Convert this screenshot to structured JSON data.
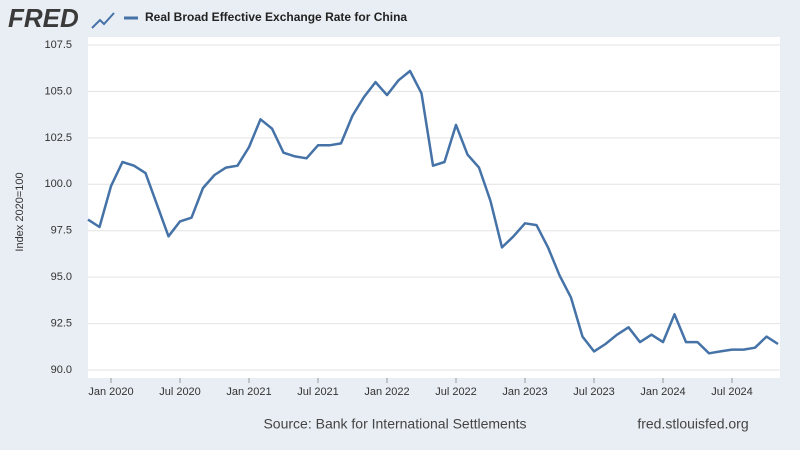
{
  "logo": "FRED",
  "chart_data": {
    "type": "line",
    "y_label": "Index 2020=100",
    "source": "Source: Bank for International Settlements",
    "site": "fred.stlouisfed.org",
    "x": [
      "2019-11",
      "2019-12",
      "2020-01",
      "2020-02",
      "2020-03",
      "2020-04",
      "2020-05",
      "2020-06",
      "2020-07",
      "2020-08",
      "2020-09",
      "2020-10",
      "2020-11",
      "2020-12",
      "2021-01",
      "2021-02",
      "2021-03",
      "2021-04",
      "2021-05",
      "2021-06",
      "2021-07",
      "2021-08",
      "2021-09",
      "2021-10",
      "2021-11",
      "2021-12",
      "2022-01",
      "2022-02",
      "2022-03",
      "2022-04",
      "2022-05",
      "2022-06",
      "2022-07",
      "2022-08",
      "2022-09",
      "2022-10",
      "2022-11",
      "2022-12",
      "2023-01",
      "2023-02",
      "2023-03",
      "2023-04",
      "2023-05",
      "2023-06",
      "2023-07",
      "2023-08",
      "2023-09",
      "2023-10",
      "2023-11",
      "2023-12",
      "2024-01",
      "2024-02",
      "2024-03",
      "2024-04",
      "2024-05",
      "2024-06",
      "2024-07",
      "2024-08",
      "2024-09",
      "2024-10",
      "2024-11"
    ],
    "series": [
      {
        "name": "Real Broad Effective Exchange Rate for China",
        "color": "#4572a7",
        "values": [
          98.1,
          97.7,
          99.9,
          101.2,
          101.0,
          100.6,
          98.9,
          97.2,
          98.0,
          98.2,
          99.8,
          100.5,
          100.9,
          101.0,
          102.0,
          103.5,
          103.0,
          101.7,
          101.5,
          101.4,
          102.1,
          102.1,
          102.2,
          103.7,
          104.7,
          105.5,
          104.8,
          105.6,
          106.1,
          104.9,
          101.0,
          101.2,
          103.2,
          101.6,
          100.9,
          99.1,
          96.6,
          97.2,
          97.9,
          97.8,
          96.6,
          95.1,
          93.9,
          91.8,
          91.0,
          91.4,
          91.9,
          92.3,
          91.5,
          91.9,
          91.5,
          93.0,
          91.5,
          91.5,
          90.9,
          91.0,
          91.1,
          91.1,
          91.2,
          91.8,
          91.4
        ]
      }
    ],
    "xlim": [
      "2019-11",
      "2024-11"
    ],
    "xticks": [
      {
        "value": "2020-01",
        "label": "Jan 2020"
      },
      {
        "value": "2020-07",
        "label": "Jul 2020"
      },
      {
        "value": "2021-01",
        "label": "Jan 2021"
      },
      {
        "value": "2021-07",
        "label": "Jul 2021"
      },
      {
        "value": "2022-01",
        "label": "Jan 2022"
      },
      {
        "value": "2022-07",
        "label": "Jul 2022"
      },
      {
        "value": "2023-01",
        "label": "Jan 2023"
      },
      {
        "value": "2023-07",
        "label": "Jul 2023"
      },
      {
        "value": "2024-01",
        "label": "Jan 2024"
      },
      {
        "value": "2024-07",
        "label": "Jul 2024"
      }
    ],
    "ylim": [
      90,
      107.5
    ],
    "yticks": [
      {
        "value": 90,
        "label": "90.0"
      },
      92.5,
      {
        "value": 95,
        "label": "95.0"
      },
      97.5,
      {
        "value": 100,
        "label": "100.0"
      },
      102.5,
      {
        "value": 105,
        "label": "105.0"
      },
      107.5
    ],
    "grid": true
  }
}
